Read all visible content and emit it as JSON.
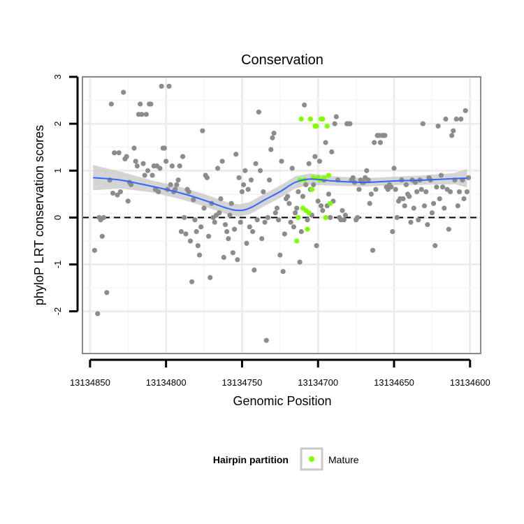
{
  "chart_data": {
    "type": "scatter",
    "title": "Conservation",
    "xlabel": "Genomic Position",
    "ylabel": "phyloP LRT conservation scores",
    "x_reversed": true,
    "xlim": [
      13134855,
      13134593
    ],
    "ylim": [
      -2.9,
      3.0
    ],
    "x_ticks": [
      13134850,
      13134800,
      13134750,
      13134700,
      13134650,
      13134600
    ],
    "x_tick_labels": [
      "13134850",
      "13134800",
      "13134750",
      "13134700",
      "13134650",
      "13134600"
    ],
    "y_ticks": [
      -2,
      -1,
      0,
      1,
      2,
      3
    ],
    "y_tick_labels": [
      "-2",
      "-1",
      "0",
      "1",
      "2",
      "3"
    ],
    "grid": true,
    "reference_line": {
      "y": 0,
      "style": "dashed"
    },
    "legend": {
      "title": "Hairpin partition",
      "position": "bottom",
      "entries": [
        "Mature"
      ]
    },
    "colors": {
      "other": "#8c8c8c",
      "mature": "#7fff00",
      "smooth": "#3366ff",
      "band": "#cccccc"
    },
    "series": [
      {
        "name": "",
        "points": [
          [
            13134847,
            -0.7
          ],
          [
            13134845,
            -2.05
          ],
          [
            13134844,
            0.0
          ],
          [
            13134843,
            -0.05
          ],
          [
            13134842,
            -0.4
          ],
          [
            13134841,
            0.0
          ],
          [
            13134839,
            -1.6
          ],
          [
            13134837,
            0.8
          ],
          [
            13134836,
            2.42
          ],
          [
            13134835,
            0.52
          ],
          [
            13134834,
            1.38
          ],
          [
            13134832,
            0.48
          ],
          [
            13134831,
            1.38
          ],
          [
            13134830,
            0.55
          ],
          [
            13134828,
            2.67
          ],
          [
            13134827,
            1.25
          ],
          [
            13134826,
            1.3
          ],
          [
            13134825,
            0.35
          ],
          [
            13134824,
            0.75
          ],
          [
            13134823,
            0.7
          ],
          [
            13134821,
            1.48
          ],
          [
            13134820,
            1.2
          ],
          [
            13134819,
            1.1
          ],
          [
            13134818,
            2.2
          ],
          [
            13134817,
            2.42
          ],
          [
            13134816,
            2.2
          ],
          [
            13134815,
            1.15
          ],
          [
            13134814,
            0.9
          ],
          [
            13134813,
            2.2
          ],
          [
            13134812,
            1.0
          ],
          [
            13134811,
            2.42
          ],
          [
            13134810,
            2.42
          ],
          [
            13134809,
            0.9
          ],
          [
            13134808,
            1.1
          ],
          [
            13134807,
            0.6
          ],
          [
            13134806,
            1.1
          ],
          [
            13134805,
            0.55
          ],
          [
            13134804,
            1.05
          ],
          [
            13134803,
            2.8
          ],
          [
            13134802,
            1.48
          ],
          [
            13134801,
            1.48
          ],
          [
            13134800,
            1.2
          ],
          [
            13134799,
            0.6
          ],
          [
            13134798,
            2.8
          ],
          [
            13134797,
            0.7
          ],
          [
            13134796,
            1.1
          ],
          [
            13134795,
            0.55
          ],
          [
            13134794,
            0.6
          ],
          [
            13134793,
            0.7
          ],
          [
            13134792,
            0.8
          ],
          [
            13134791,
            1.1
          ],
          [
            13134790,
            -0.3
          ],
          [
            13134789,
            1.3
          ],
          [
            13134788,
            0.0
          ],
          [
            13134787,
            -0.35
          ],
          [
            13134786,
            0.6
          ],
          [
            13134785,
            0.55
          ],
          [
            13134784,
            -0.5
          ],
          [
            13134783,
            -1.37
          ],
          [
            13134782,
            0.38
          ],
          [
            13134781,
            -0.05
          ],
          [
            13134780,
            -0.3
          ],
          [
            13134779,
            -0.6
          ],
          [
            13134778,
            -0.8
          ],
          [
            13134777,
            -0.2
          ],
          [
            13134776,
            1.85
          ],
          [
            13134775,
            0.2
          ],
          [
            13134774,
            0.9
          ],
          [
            13134773,
            0.85
          ],
          [
            13134772,
            -0.4
          ],
          [
            13134771,
            -1.28
          ],
          [
            13134770,
            0.3
          ],
          [
            13134769,
            0.0
          ],
          [
            13134768,
            -0.1
          ],
          [
            13134767,
            0.05
          ],
          [
            13134766,
            1.05
          ],
          [
            13134765,
            0.1
          ],
          [
            13134764,
            0.4
          ],
          [
            13134763,
            1.2
          ],
          [
            13134762,
            -0.85
          ],
          [
            13134761,
            -0.15
          ],
          [
            13134760,
            -0.3
          ],
          [
            13134759,
            -0.45
          ],
          [
            13134758,
            0.05
          ],
          [
            13134757,
            0.3
          ],
          [
            13134756,
            -0.75
          ],
          [
            13134755,
            -0.25
          ],
          [
            13134754,
            1.35
          ],
          [
            13134753,
            -0.9
          ],
          [
            13134752,
            0.85
          ],
          [
            13134751,
            -0.1
          ],
          [
            13134750,
            0.55
          ],
          [
            13134749,
            0.7
          ],
          [
            13134748,
            1.0
          ],
          [
            13134747,
            -0.55
          ],
          [
            13134746,
            0.6
          ],
          [
            13134745,
            -0.2
          ],
          [
            13134744,
            0.8
          ],
          [
            13134743,
            -0.3
          ],
          [
            13134742,
            -1.12
          ],
          [
            13134741,
            1.15
          ],
          [
            13134740,
            -0.05
          ],
          [
            13134739,
            2.25
          ],
          [
            13134738,
            1.0
          ],
          [
            13134737,
            -0.45
          ],
          [
            13134736,
            0.55
          ],
          [
            13134735,
            -0.1
          ],
          [
            13134734,
            -2.62
          ],
          [
            13134733,
            0.0
          ],
          [
            13134732,
            0.8
          ],
          [
            13134731,
            1.45
          ],
          [
            13134730,
            1.7
          ],
          [
            13134729,
            1.8
          ],
          [
            13134728,
            0.1
          ],
          [
            13134727,
            0.2
          ],
          [
            13134726,
            -0.05
          ],
          [
            13134725,
            -0.8
          ],
          [
            13134724,
            1.2
          ],
          [
            13134723,
            -1.15
          ],
          [
            13134722,
            -0.35
          ],
          [
            13134721,
            0.4
          ],
          [
            13134720,
            0.45
          ],
          [
            13134719,
            0.3
          ],
          [
            13134718,
            -0.1
          ],
          [
            13134717,
            1.05
          ],
          [
            13134716,
            -0.2
          ],
          [
            13134715,
            0.1
          ],
          [
            13134714,
            0.2
          ],
          [
            13134713,
            0.55
          ],
          [
            13134712,
            -0.95
          ],
          [
            13134711,
            -0.3
          ],
          [
            13134710,
            0.45
          ],
          [
            13134709,
            2.4
          ],
          [
            13134708,
            0.7
          ],
          [
            13134707,
            -0.05
          ],
          [
            13134706,
            1.15
          ],
          [
            13134705,
            0.6
          ],
          [
            13134704,
            0.05
          ],
          [
            13134703,
            0.7
          ],
          [
            13134702,
            1.3
          ],
          [
            13134701,
            -0.6
          ],
          [
            13134700,
            0.35
          ],
          [
            13134699,
            1.2
          ],
          [
            13134698,
            0.25
          ],
          [
            13134697,
            0.15
          ],
          [
            13134696,
            0.8
          ],
          [
            13134695,
            1.6
          ],
          [
            13134694,
            0.25
          ],
          [
            13134693,
            0.5
          ],
          [
            13134692,
            0.0
          ],
          [
            13134691,
            1.4
          ],
          [
            13134690,
            0.35
          ],
          [
            13134689,
            2.0
          ],
          [
            13134688,
            2.15
          ],
          [
            13134687,
            0.8
          ],
          [
            13134686,
            0.0
          ],
          [
            13134685,
            -0.05
          ],
          [
            13134684,
            0.15
          ],
          [
            13134683,
            -0.05
          ],
          [
            13134682,
            0.05
          ],
          [
            13134681,
            2.0
          ],
          [
            13134680,
            2.0
          ],
          [
            13134679,
            2.0
          ],
          [
            13134678,
            0.8
          ],
          [
            13134677,
            0.85
          ],
          [
            13134676,
            0.75
          ],
          [
            13134675,
            -0.05
          ],
          [
            13134674,
            0.0
          ],
          [
            13134673,
            0.6
          ],
          [
            13134672,
            0.8
          ],
          [
            13134671,
            0.75
          ],
          [
            13134670,
            0.75
          ],
          [
            13134669,
            0.85
          ],
          [
            13134668,
            1.0
          ],
          [
            13134667,
            0.8
          ],
          [
            13134666,
            0.3
          ],
          [
            13134665,
            0.5
          ],
          [
            13134664,
            -0.7
          ],
          [
            13134663,
            1.6
          ],
          [
            13134662,
            0.6
          ],
          [
            13134661,
            1.75
          ],
          [
            13134660,
            1.75
          ],
          [
            13134659,
            1.6
          ],
          [
            13134658,
            1.75
          ],
          [
            13134657,
            1.75
          ],
          [
            13134656,
            1.75
          ],
          [
            13134655,
            0.65
          ],
          [
            13134654,
            0.6
          ],
          [
            13134653,
            0.7
          ],
          [
            13134652,
            0.65
          ],
          [
            13134651,
            -0.3
          ],
          [
            13134650,
            1.05
          ],
          [
            13134649,
            0.6
          ],
          [
            13134648,
            0.0
          ],
          [
            13134647,
            0.35
          ],
          [
            13134646,
            0.4
          ],
          [
            13134645,
            0.8
          ],
          [
            13134644,
            0.4
          ],
          [
            13134643,
            0.25
          ],
          [
            13134642,
            0.7
          ],
          [
            13134641,
            0.5
          ],
          [
            13134640,
            0.45
          ],
          [
            13134639,
            -0.1
          ],
          [
            13134638,
            0.8
          ],
          [
            13134637,
            0.2
          ],
          [
            13134636,
            0.75
          ],
          [
            13134635,
            0.55
          ],
          [
            13134634,
            -0.05
          ],
          [
            13134633,
            0.8
          ],
          [
            13134632,
            0.6
          ],
          [
            13134631,
            2.0
          ],
          [
            13134630,
            0.25
          ],
          [
            13134629,
            0.55
          ],
          [
            13134628,
            -0.15
          ],
          [
            13134627,
            0.85
          ],
          [
            13134626,
            0.8
          ],
          [
            13134625,
            0.1
          ],
          [
            13134624,
            0.3
          ],
          [
            13134623,
            -0.6
          ],
          [
            13134622,
            0.65
          ],
          [
            13134621,
            1.95
          ],
          [
            13134620,
            0.4
          ],
          [
            13134619,
            0.9
          ],
          [
            13134618,
            0.65
          ],
          [
            13134617,
            0.2
          ],
          [
            13134616,
            2.1
          ],
          [
            13134615,
            0.6
          ],
          [
            13134614,
            -0.25
          ],
          [
            13134613,
            0.55
          ],
          [
            13134612,
            1.75
          ],
          [
            13134611,
            1.85
          ],
          [
            13134610,
            0.8
          ],
          [
            13134609,
            2.1
          ],
          [
            13134608,
            0.25
          ],
          [
            13134607,
            0.55
          ],
          [
            13134606,
            2.1
          ],
          [
            13134605,
            0.8
          ],
          [
            13134604,
            0.4
          ],
          [
            13134603,
            2.28
          ],
          [
            13134602,
            0.55
          ],
          [
            13134601,
            0.85
          ]
        ]
      },
      {
        "name": "Mature",
        "points": [
          [
            13134714,
            -0.5
          ],
          [
            13134713,
            0.0
          ],
          [
            13134712,
            0.8
          ],
          [
            13134711,
            2.1
          ],
          [
            13134710,
            0.2
          ],
          [
            13134709,
            0.8
          ],
          [
            13134708,
            0.15
          ],
          [
            13134707,
            -0.25
          ],
          [
            13134706,
            0.1
          ],
          [
            13134705,
            2.1
          ],
          [
            13134704,
            0.6
          ],
          [
            13134703,
            0.85
          ],
          [
            13134702,
            1.95
          ],
          [
            13134701,
            1.95
          ],
          [
            13134700,
            0.85
          ],
          [
            13134699,
            0.8
          ],
          [
            13134698,
            2.1
          ],
          [
            13134697,
            2.1
          ],
          [
            13134696,
            0.85
          ],
          [
            13134695,
            0.0
          ],
          [
            13134694,
            1.95
          ],
          [
            13134693,
            0.9
          ],
          [
            13134692,
            0.3
          ]
        ]
      }
    ],
    "smooth": {
      "x": [
        13134848,
        13134830,
        13134810,
        13134790,
        13134775,
        13134760,
        13134752,
        13134745,
        13134735,
        13134725,
        13134715,
        13134705,
        13134690,
        13134670,
        13134650,
        13134630,
        13134610,
        13134602
      ],
      "y": [
        0.85,
        0.8,
        0.67,
        0.52,
        0.37,
        0.2,
        0.15,
        0.2,
        0.38,
        0.55,
        0.75,
        0.82,
        0.78,
        0.75,
        0.78,
        0.8,
        0.83,
        0.84
      ],
      "band_halfwidth": [
        0.27,
        0.18,
        0.13,
        0.13,
        0.13,
        0.13,
        0.13,
        0.13,
        0.13,
        0.13,
        0.13,
        0.12,
        0.1,
        0.09,
        0.09,
        0.1,
        0.12,
        0.2
      ]
    }
  }
}
